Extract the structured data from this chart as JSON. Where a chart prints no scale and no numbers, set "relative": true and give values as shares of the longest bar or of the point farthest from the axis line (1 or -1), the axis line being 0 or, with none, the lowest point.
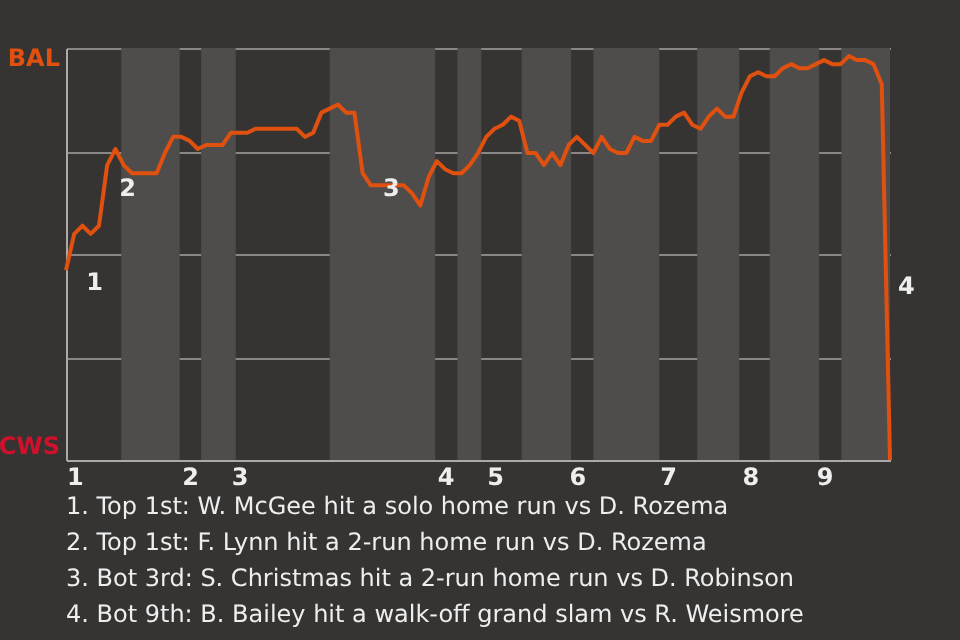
{
  "chart_data": {
    "type": "line",
    "relative": true,
    "categories": [
      "1",
      null,
      null,
      null,
      null,
      null,
      null,
      null,
      null,
      null,
      null,
      null,
      null,
      null,
      null,
      "2",
      null,
      null,
      null,
      null,
      null,
      "3",
      null,
      null,
      null,
      null,
      null,
      null,
      null,
      null,
      null,
      null,
      null,
      null,
      null,
      null,
      null,
      null,
      null,
      null,
      null,
      null,
      null,
      null,
      null,
      null,
      "4",
      null,
      null,
      null,
      null,
      null,
      "5",
      null,
      null,
      null,
      null,
      null,
      null,
      null,
      null,
      null,
      "6",
      null,
      null,
      null,
      null,
      null,
      null,
      null,
      null,
      null,
      null,
      "7",
      null,
      null,
      null,
      null,
      null,
      null,
      null,
      null,
      null,
      "8",
      null,
      null,
      null,
      null,
      null,
      null,
      null,
      null,
      "9",
      null,
      null,
      null,
      null,
      null,
      null,
      null,
      null
    ],
    "series": [
      {
        "color": "#e0500f",
        "values": [
          0.47,
          0.56,
          0.58,
          0.56,
          0.58,
          0.73,
          0.77,
          0.73,
          0.71,
          0.71,
          0.71,
          0.71,
          0.76,
          0.8,
          0.8,
          0.79,
          0.77,
          0.78,
          0.78,
          0.78,
          0.81,
          0.81,
          0.81,
          0.82,
          0.82,
          0.82,
          0.82,
          0.82,
          0.82,
          0.8,
          0.81,
          0.86,
          0.87,
          0.88,
          0.86,
          0.86,
          0.71,
          0.68,
          0.68,
          0.68,
          0.68,
          0.68,
          0.66,
          0.63,
          0.7,
          0.74,
          0.72,
          0.71,
          0.71,
          0.73,
          0.76,
          0.8,
          0.82,
          0.83,
          0.85,
          0.84,
          0.76,
          0.76,
          0.73,
          0.76,
          0.73,
          0.78,
          0.8,
          0.78,
          0.76,
          0.8,
          0.77,
          0.76,
          0.76,
          0.8,
          0.79,
          0.79,
          0.83,
          0.83,
          0.85,
          0.86,
          0.83,
          0.82,
          0.85,
          0.87,
          0.85,
          0.85,
          0.91,
          0.95,
          0.96,
          0.95,
          0.95,
          0.97,
          0.98,
          0.97,
          0.97,
          0.98,
          0.99,
          0.98,
          0.98,
          1,
          0.99,
          0.99,
          0.98,
          0.93,
          0
        ]
      }
    ],
    "grid": "y",
    "marker": "none",
    "line_style": "solid",
    "annotations": [
      "BAL",
      "CWS",
      "1",
      "2",
      "3",
      "4",
      "1. Top 1st: W. McGee hit a solo home run vs D. Rozema",
      "2. Top 1st: F. Lynn hit a 2-run home run vs D. Rozema",
      "3. Bot 3rd: S. Christmas hit a 2-run home run vs D. Robinson",
      "4. Bot 9th: B. Bailey hit a walk-off grand slam vs R. Weismore"
    ]
  }
}
